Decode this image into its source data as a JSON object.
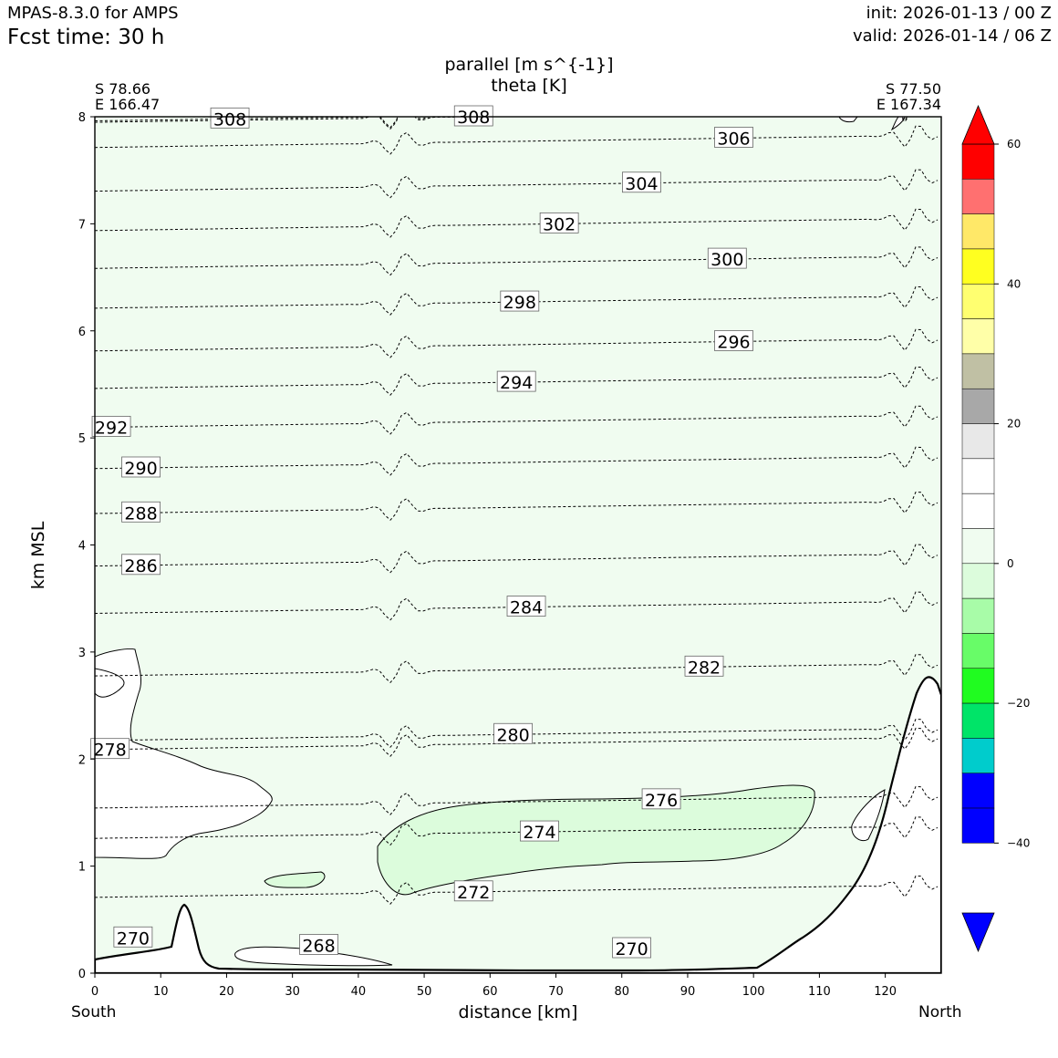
{
  "header": {
    "model": "MPAS-8.3.0 for AMPS",
    "fcst_time": "Fcst time:   30 h",
    "init": "init: 2026-01-13 / 00 Z",
    "valid": "valid: 2026-01-14 / 06 Z"
  },
  "endpoints": {
    "left_lat": "S 78.66",
    "left_lon": "E 166.47",
    "right_lat": "S 77.50",
    "right_lon": "E 167.34",
    "left_dir": "South",
    "right_dir": "North"
  },
  "colors": {
    "background_field": "#f0fcf0",
    "wind_negative_band": "#dcfcdc",
    "terrain": "#ffffff"
  },
  "chart_data": {
    "type": "contour",
    "title": "parallel [m s^{-1}]",
    "subtitle": "theta [K]",
    "xlabel": "distance [km]",
    "ylabel": "km MSL",
    "xlim": [
      0,
      128.5
    ],
    "ylim": [
      0,
      8
    ],
    "xticks": [
      0,
      10,
      20,
      30,
      40,
      50,
      60,
      70,
      80,
      90,
      100,
      110,
      120
    ],
    "yticks": [
      0,
      1,
      2,
      3,
      4,
      5,
      6,
      7,
      8
    ],
    "theta_contours": [
      {
        "value": "268",
        "label_x": 34,
        "label_y": 0.26
      },
      {
        "value": "270",
        "label_x": 5.8,
        "label_y": 0.33
      },
      {
        "value": "270",
        "label_x": 81.5,
        "label_y": 0.23
      },
      {
        "value": "272",
        "label_x": 57.5,
        "label_y": 0.76
      },
      {
        "value": "274",
        "label_x": 67.5,
        "label_y": 1.32
      },
      {
        "value": "276",
        "label_x": 86,
        "label_y": 1.62
      },
      {
        "value": "278",
        "label_x": 2.3,
        "label_y": 2.09
      },
      {
        "value": "280",
        "label_x": 63.5,
        "label_y": 2.23
      },
      {
        "value": "282",
        "label_x": 92.5,
        "label_y": 2.86
      },
      {
        "value": "284",
        "label_x": 65.5,
        "label_y": 3.42
      },
      {
        "value": "286",
        "label_x": 7,
        "label_y": 3.81
      },
      {
        "value": "288",
        "label_x": 7,
        "label_y": 4.3
      },
      {
        "value": "290",
        "label_x": 7,
        "label_y": 4.72
      },
      {
        "value": "292",
        "label_x": 2.5,
        "label_y": 5.1
      },
      {
        "value": "294",
        "label_x": 64,
        "label_y": 5.52
      },
      {
        "value": "296",
        "label_x": 97,
        "label_y": 5.9
      },
      {
        "value": "298",
        "label_x": 64.5,
        "label_y": 6.27
      },
      {
        "value": "300",
        "label_x": 96,
        "label_y": 6.67
      },
      {
        "value": "302",
        "label_x": 70.5,
        "label_y": 7.0
      },
      {
        "value": "304",
        "label_x": 83,
        "label_y": 7.38
      },
      {
        "value": "306",
        "label_x": 97,
        "label_y": 7.8
      },
      {
        "value": "308",
        "label_x": 20.5,
        "label_y": 7.98
      },
      {
        "value": "308",
        "label_x": 57.5,
        "label_y": 8.0
      }
    ],
    "colorbar": {
      "label_values": [
        "60",
        "40",
        "20",
        "0",
        "−20",
        "−40"
      ],
      "ticks": [
        60,
        40,
        20,
        0,
        -20,
        -40
      ],
      "vmin": -50,
      "vmax": 60,
      "segments": [
        {
          "from": 55,
          "to": 60,
          "color": "#ff0000"
        },
        {
          "from": 50,
          "to": 55,
          "color": "#ff7070"
        },
        {
          "from": 45,
          "to": 50,
          "color": "#ffe868"
        },
        {
          "from": 40,
          "to": 45,
          "color": "#ffff20"
        },
        {
          "from": 35,
          "to": 40,
          "color": "#ffff70"
        },
        {
          "from": 30,
          "to": 35,
          "color": "#ffffa8"
        },
        {
          "from": 25,
          "to": 30,
          "color": "#c0c0a4"
        },
        {
          "from": 20,
          "to": 25,
          "color": "#a8a8a8"
        },
        {
          "from": 15,
          "to": 20,
          "color": "#e8e8e8"
        },
        {
          "from": 10,
          "to": 15,
          "color": "#ffffff"
        },
        {
          "from": 5,
          "to": 10,
          "color": "#ffffff"
        },
        {
          "from": 0,
          "to": 5,
          "color": "#f0fcf0"
        },
        {
          "from": -5,
          "to": 0,
          "color": "#dcfcdc"
        },
        {
          "from": -10,
          "to": -5,
          "color": "#a8fca8"
        },
        {
          "from": -15,
          "to": -10,
          "color": "#68fc68"
        },
        {
          "from": -20,
          "to": -15,
          "color": "#20fc20"
        },
        {
          "from": -25,
          "to": -20,
          "color": "#00e468"
        },
        {
          "from": -30,
          "to": -25,
          "color": "#00cccc"
        },
        {
          "from": -35,
          "to": -30,
          "color": "#0000ff"
        },
        {
          "from": -40,
          "to": -35,
          "color": "#0000ff"
        }
      ],
      "extend_max_color": "#ff0000",
      "extend_min_color": "#0000ff"
    }
  }
}
